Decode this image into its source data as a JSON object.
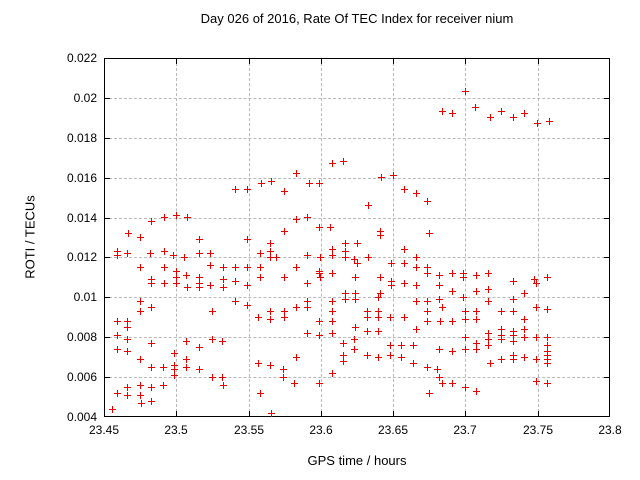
{
  "chart_data": {
    "type": "scatter",
    "title": "Day 026 of 2016, Rate Of TEC Index for receiver nium",
    "xlabel": "GPS time / hours",
    "ylabel": "ROTI / TECUs",
    "xlim": [
      23.45,
      23.8
    ],
    "ylim": [
      0.004,
      0.022
    ],
    "grid": true,
    "legend_position": "none",
    "xticks": {
      "values": [
        23.45,
        23.5,
        23.55,
        23.6,
        23.65,
        23.7,
        23.75,
        23.8
      ],
      "labels": [
        "23.45",
        "23.5",
        "23.55",
        "23.6",
        "23.65",
        "23.7",
        "23.75",
        "23.8"
      ]
    },
    "yticks": {
      "values": [
        0.004,
        0.006,
        0.008,
        0.01,
        0.012,
        0.014,
        0.016,
        0.018,
        0.02,
        0.022
      ],
      "labels": [
        "0.004",
        "0.006",
        "0.008",
        "0.01",
        "0.012",
        "0.014",
        "0.016",
        "0.018",
        "0.02",
        "0.022"
      ]
    },
    "series": [
      {
        "name": "ROTI",
        "marker": "plus",
        "color": "#e60000",
        "points": [
          [
            23.684,
            0.0193
          ],
          [
            23.691,
            0.0192
          ],
          [
            23.7,
            0.0203
          ],
          [
            23.707,
            0.0195
          ],
          [
            23.717,
            0.019
          ],
          [
            23.725,
            0.0193
          ],
          [
            23.733,
            0.019
          ],
          [
            23.741,
            0.0192
          ],
          [
            23.75,
            0.0187
          ],
          [
            23.758,
            0.0188
          ],
          [
            23.541,
            0.0154
          ],
          [
            23.549,
            0.0154
          ],
          [
            23.559,
            0.0157
          ],
          [
            23.566,
            0.0158
          ],
          [
            23.575,
            0.0153
          ],
          [
            23.583,
            0.0162
          ],
          [
            23.592,
            0.0157
          ],
          [
            23.599,
            0.0157
          ],
          [
            23.608,
            0.0167
          ],
          [
            23.616,
            0.0168
          ],
          [
            23.633,
            0.0146
          ],
          [
            23.642,
            0.016
          ],
          [
            23.65,
            0.0161
          ],
          [
            23.658,
            0.0154
          ],
          [
            23.666,
            0.0152
          ],
          [
            23.674,
            0.0148
          ],
          [
            23.467,
            0.0132
          ],
          [
            23.475,
            0.013
          ],
          [
            23.483,
            0.0138
          ],
          [
            23.492,
            0.014
          ],
          [
            23.5,
            0.0141
          ],
          [
            23.508,
            0.014
          ],
          [
            23.516,
            0.0129
          ],
          [
            23.549,
            0.0129
          ],
          [
            23.575,
            0.0133
          ],
          [
            23.583,
            0.0139
          ],
          [
            23.591,
            0.014
          ],
          [
            23.599,
            0.0135
          ],
          [
            23.607,
            0.0135
          ],
          [
            23.641,
            0.0133
          ],
          [
            23.641,
            0.0131
          ],
          [
            23.675,
            0.0132
          ],
          [
            23.459,
            0.0123
          ],
          [
            23.459,
            0.0121
          ],
          [
            23.466,
            0.0122
          ],
          [
            23.482,
            0.0122
          ],
          [
            23.492,
            0.0123
          ],
          [
            23.498,
            0.0121
          ],
          [
            23.506,
            0.012
          ],
          [
            23.516,
            0.0122
          ],
          [
            23.524,
            0.0122
          ],
          [
            23.558,
            0.0122
          ],
          [
            23.565,
            0.0127
          ],
          [
            23.565,
            0.0123
          ],
          [
            23.565,
            0.012
          ],
          [
            23.569,
            0.012
          ],
          [
            23.591,
            0.0121
          ],
          [
            23.6,
            0.012
          ],
          [
            23.608,
            0.0124
          ],
          [
            23.608,
            0.0121
          ],
          [
            23.617,
            0.0127
          ],
          [
            23.617,
            0.0123
          ],
          [
            23.617,
            0.012
          ],
          [
            23.623,
            0.0119
          ],
          [
            23.625,
            0.0127
          ],
          [
            23.625,
            0.0117
          ],
          [
            23.633,
            0.012
          ],
          [
            23.658,
            0.0124
          ],
          [
            23.658,
            0.0117
          ],
          [
            23.666,
            0.012
          ],
          [
            23.475,
            0.0115
          ],
          [
            23.492,
            0.0115
          ],
          [
            23.5,
            0.0113
          ],
          [
            23.5,
            0.011
          ],
          [
            23.516,
            0.011
          ],
          [
            23.524,
            0.0116
          ],
          [
            23.533,
            0.0115
          ],
          [
            23.541,
            0.0115
          ],
          [
            23.549,
            0.0115
          ],
          [
            23.558,
            0.0115
          ],
          [
            23.558,
            0.011
          ],
          [
            23.575,
            0.011
          ],
          [
            23.583,
            0.0115
          ],
          [
            23.599,
            0.0113
          ],
          [
            23.599,
            0.0112
          ],
          [
            23.6,
            0.011
          ],
          [
            23.608,
            0.0112
          ],
          [
            23.624,
            0.011
          ],
          [
            23.641,
            0.011
          ],
          [
            23.649,
            0.0117
          ],
          [
            23.666,
            0.0115
          ],
          [
            23.674,
            0.0115
          ],
          [
            23.674,
            0.0112
          ],
          [
            23.682,
            0.0111
          ],
          [
            23.691,
            0.0112
          ],
          [
            23.699,
            0.0112
          ],
          [
            23.699,
            0.011
          ],
          [
            23.708,
            0.0111
          ],
          [
            23.716,
            0.0112
          ],
          [
            23.748,
            0.0109
          ],
          [
            23.757,
            0.011
          ],
          [
            23.533,
            0.0109
          ],
          [
            23.483,
            0.0109
          ],
          [
            23.483,
            0.0107
          ],
          [
            23.492,
            0.0107
          ],
          [
            23.5,
            0.0107
          ],
          [
            23.507,
            0.0111
          ],
          [
            23.508,
            0.0105
          ],
          [
            23.516,
            0.0107
          ],
          [
            23.516,
            0.0105
          ],
          [
            23.524,
            0.0106
          ],
          [
            23.533,
            0.0105
          ],
          [
            23.541,
            0.0108
          ],
          [
            23.549,
            0.0106
          ],
          [
            23.591,
            0.0107
          ],
          [
            23.617,
            0.0102
          ],
          [
            23.624,
            0.0102
          ],
          [
            23.641,
            0.0102
          ],
          [
            23.649,
            0.0108
          ],
          [
            23.649,
            0.0106
          ],
          [
            23.658,
            0.0107
          ],
          [
            23.666,
            0.0106
          ],
          [
            23.682,
            0.0106
          ],
          [
            23.691,
            0.0103
          ],
          [
            23.708,
            0.0103
          ],
          [
            23.716,
            0.0104
          ],
          [
            23.733,
            0.0108
          ],
          [
            23.741,
            0.0102
          ],
          [
            23.749,
            0.0107
          ],
          [
            23.475,
            0.0098
          ],
          [
            23.475,
            0.0093
          ],
          [
            23.483,
            0.0095
          ],
          [
            23.525,
            0.0093
          ],
          [
            23.541,
            0.0098
          ],
          [
            23.549,
            0.0096
          ],
          [
            23.557,
            0.009
          ],
          [
            23.565,
            0.0093
          ],
          [
            23.565,
            0.0089
          ],
          [
            23.575,
            0.0093
          ],
          [
            23.575,
            0.009
          ],
          [
            23.583,
            0.0095
          ],
          [
            23.591,
            0.0098
          ],
          [
            23.591,
            0.0095
          ],
          [
            23.608,
            0.0098
          ],
          [
            23.608,
            0.0093
          ],
          [
            23.617,
            0.0099
          ],
          [
            23.624,
            0.0099
          ],
          [
            23.632,
            0.0093
          ],
          [
            23.632,
            0.009
          ],
          [
            23.64,
            0.01
          ],
          [
            23.64,
            0.0093
          ],
          [
            23.64,
            0.009
          ],
          [
            23.648,
            0.009
          ],
          [
            23.658,
            0.009
          ],
          [
            23.666,
            0.0098
          ],
          [
            23.674,
            0.0098
          ],
          [
            23.674,
            0.0093
          ],
          [
            23.682,
            0.0099
          ],
          [
            23.684,
            0.0095
          ],
          [
            23.699,
            0.01
          ],
          [
            23.7,
            0.0093
          ],
          [
            23.7,
            0.0089
          ],
          [
            23.708,
            0.0093
          ],
          [
            23.708,
            0.0089
          ],
          [
            23.716,
            0.0098
          ],
          [
            23.725,
            0.0093
          ],
          [
            23.733,
            0.0099
          ],
          [
            23.733,
            0.0093
          ],
          [
            23.741,
            0.0089
          ],
          [
            23.749,
            0.0095
          ],
          [
            23.757,
            0.0094
          ],
          [
            23.691,
            0.0088
          ],
          [
            23.459,
            0.0088
          ],
          [
            23.459,
            0.0081
          ],
          [
            23.466,
            0.0088
          ],
          [
            23.466,
            0.0085
          ],
          [
            23.591,
            0.0082
          ],
          [
            23.599,
            0.0088
          ],
          [
            23.599,
            0.0081
          ],
          [
            23.608,
            0.0088
          ],
          [
            23.608,
            0.0082
          ],
          [
            23.624,
            0.0085
          ],
          [
            23.632,
            0.0083
          ],
          [
            23.64,
            0.0083
          ],
          [
            23.666,
            0.0084
          ],
          [
            23.674,
            0.0088
          ],
          [
            23.683,
            0.0088
          ],
          [
            23.7,
            0.008
          ],
          [
            23.716,
            0.0082
          ],
          [
            23.725,
            0.0084
          ],
          [
            23.725,
            0.0081
          ],
          [
            23.733,
            0.0083
          ],
          [
            23.733,
            0.0081
          ],
          [
            23.741,
            0.0084
          ],
          [
            23.741,
            0.008
          ],
          [
            23.749,
            0.008
          ],
          [
            23.757,
            0.008
          ],
          [
            23.466,
            0.0079
          ],
          [
            23.483,
            0.0077
          ],
          [
            23.499,
            0.0072
          ],
          [
            23.507,
            0.0078
          ],
          [
            23.516,
            0.0075
          ],
          [
            23.525,
            0.0079
          ],
          [
            23.532,
            0.0078
          ],
          [
            23.459,
            0.0074
          ],
          [
            23.466,
            0.0073
          ],
          [
            23.616,
            0.0077
          ],
          [
            23.623,
            0.0079
          ],
          [
            23.623,
            0.0074
          ],
          [
            23.632,
            0.0071
          ],
          [
            23.64,
            0.007
          ],
          [
            23.648,
            0.0076
          ],
          [
            23.648,
            0.0071
          ],
          [
            23.656,
            0.0076
          ],
          [
            23.656,
            0.007
          ],
          [
            23.664,
            0.0076
          ],
          [
            23.616,
            0.0071
          ],
          [
            23.682,
            0.0074
          ],
          [
            23.691,
            0.0073
          ],
          [
            23.7,
            0.0074
          ],
          [
            23.708,
            0.0077
          ],
          [
            23.708,
            0.0074
          ],
          [
            23.716,
            0.0079
          ],
          [
            23.716,
            0.0076
          ],
          [
            23.725,
            0.0079
          ],
          [
            23.733,
            0.0078
          ],
          [
            23.757,
            0.0076
          ],
          [
            23.757,
            0.0073
          ],
          [
            23.757,
            0.0071
          ],
          [
            23.733,
            0.0071
          ],
          [
            23.475,
            0.0069
          ],
          [
            23.483,
            0.0065
          ],
          [
            23.491,
            0.0065
          ],
          [
            23.499,
            0.0066
          ],
          [
            23.499,
            0.0064
          ],
          [
            23.499,
            0.0061
          ],
          [
            23.507,
            0.0069
          ],
          [
            23.507,
            0.0065
          ],
          [
            23.516,
            0.0064
          ],
          [
            23.557,
            0.0067
          ],
          [
            23.565,
            0.0066
          ],
          [
            23.574,
            0.0064
          ],
          [
            23.583,
            0.007
          ],
          [
            23.608,
            0.0062
          ],
          [
            23.616,
            0.0068
          ],
          [
            23.664,
            0.0067
          ],
          [
            23.674,
            0.0065
          ],
          [
            23.681,
            0.0064
          ],
          [
            23.717,
            0.0067
          ],
          [
            23.725,
            0.0069
          ],
          [
            23.733,
            0.0069
          ],
          [
            23.741,
            0.007
          ],
          [
            23.749,
            0.0069
          ],
          [
            23.757,
            0.0069
          ],
          [
            23.757,
            0.0067
          ],
          [
            23.525,
            0.006
          ],
          [
            23.532,
            0.006
          ],
          [
            23.574,
            0.006
          ],
          [
            23.682,
            0.006
          ],
          [
            23.459,
            0.0052
          ],
          [
            23.466,
            0.0055
          ],
          [
            23.466,
            0.0051
          ],
          [
            23.475,
            0.0056
          ],
          [
            23.475,
            0.0051
          ],
          [
            23.483,
            0.0055
          ],
          [
            23.491,
            0.0056
          ],
          [
            23.533,
            0.0056
          ],
          [
            23.558,
            0.0052
          ],
          [
            23.582,
            0.0057
          ],
          [
            23.599,
            0.0057
          ],
          [
            23.675,
            0.0052
          ],
          [
            23.684,
            0.0057
          ],
          [
            23.691,
            0.0057
          ],
          [
            23.7,
            0.0055
          ],
          [
            23.708,
            0.0053
          ],
          [
            23.749,
            0.0058
          ],
          [
            23.757,
            0.0057
          ],
          [
            23.456,
            0.0044
          ],
          [
            23.476,
            0.0047
          ],
          [
            23.483,
            0.0048
          ],
          [
            23.566,
            0.0042
          ]
        ]
      }
    ]
  }
}
